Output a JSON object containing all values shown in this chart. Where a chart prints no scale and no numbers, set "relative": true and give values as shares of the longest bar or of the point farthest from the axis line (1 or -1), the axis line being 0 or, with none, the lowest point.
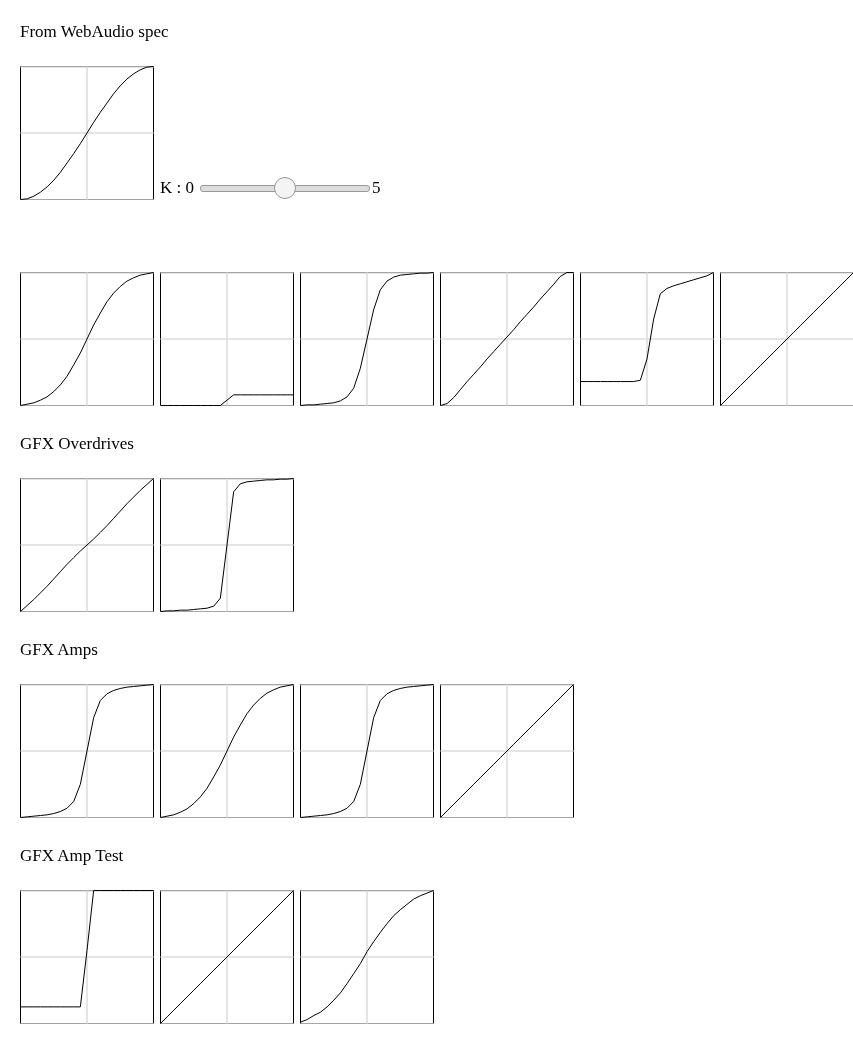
{
  "chart_data": [
    {
      "type": "line",
      "title": "From WebAudio spec",
      "annotations": [
        "K : 0",
        "5"
      ],
      "relative": true,
      "grid": true,
      "categories": [
        null,
        null,
        null,
        null,
        null,
        null,
        null,
        null,
        null,
        null,
        null,
        null,
        null,
        null,
        null,
        null,
        null,
        null,
        null,
        null,
        null
      ],
      "color": "#000000",
      "values": [
        -1,
        -0.99,
        -0.95,
        -0.89,
        -0.81,
        -0.71,
        -0.59,
        -0.45,
        -0.31,
        -0.16,
        0,
        0.16,
        0.31,
        0.45,
        0.59,
        0.71,
        0.81,
        0.89,
        0.95,
        0.99,
        1
      ]
    },
    {
      "type": "line",
      "relative": true,
      "grid": true,
      "categories": [
        null,
        null,
        null,
        null,
        null,
        null,
        null,
        null,
        null,
        null,
        null,
        null,
        null,
        null,
        null,
        null,
        null,
        null,
        null,
        null,
        null
      ],
      "color": "#000000",
      "values": [
        -1,
        -0.98,
        -0.96,
        -0.92,
        -0.87,
        -0.79,
        -0.69,
        -0.56,
        -0.39,
        -0.21,
        0,
        0.21,
        0.39,
        0.56,
        0.69,
        0.79,
        0.87,
        0.92,
        0.96,
        0.98,
        1
      ]
    },
    {
      "type": "line",
      "relative": true,
      "grid": true,
      "categories": [
        null,
        null,
        null,
        null,
        null,
        null,
        null,
        null,
        null,
        null,
        null,
        null,
        null,
        null,
        null,
        null,
        null,
        null,
        null,
        null,
        null
      ],
      "color": "#000000",
      "values": [
        -1,
        -1,
        -1,
        -1,
        -1,
        -1,
        -1,
        -1,
        -1,
        -1,
        -0.92,
        -0.84,
        -0.84,
        -0.84,
        -0.84,
        -0.84,
        -0.84,
        -0.84,
        -0.84,
        -0.84,
        -0.84
      ]
    },
    {
      "type": "line",
      "relative": true,
      "grid": true,
      "categories": [
        null,
        null,
        null,
        null,
        null,
        null,
        null,
        null,
        null,
        null,
        null,
        null,
        null,
        null,
        null,
        null,
        null,
        null,
        null,
        null,
        null
      ],
      "color": "#000000",
      "values": [
        -1,
        -0.99,
        -0.99,
        -0.98,
        -0.97,
        -0.96,
        -0.93,
        -0.87,
        -0.74,
        -0.44,
        0,
        0.44,
        0.74,
        0.87,
        0.93,
        0.96,
        0.97,
        0.98,
        0.99,
        0.99,
        1
      ]
    },
    {
      "type": "line",
      "relative": true,
      "grid": true,
      "categories": [
        null,
        null,
        null,
        null,
        null,
        null,
        null,
        null,
        null,
        null,
        null,
        null,
        null,
        null,
        null,
        null,
        null,
        null,
        null,
        null,
        null
      ],
      "color": "#000000",
      "values": [
        -1,
        -0.97,
        -0.88,
        -0.76,
        -0.64,
        -0.53,
        -0.42,
        -0.3,
        -0.19,
        -0.08,
        0.03,
        0.14,
        0.26,
        0.37,
        0.48,
        0.6,
        0.71,
        0.82,
        0.94,
        1,
        1
      ]
    },
    {
      "type": "line",
      "relative": true,
      "grid": true,
      "categories": [
        null,
        null,
        null,
        null,
        null,
        null,
        null,
        null,
        null,
        null,
        null,
        null,
        null,
        null,
        null,
        null,
        null,
        null,
        null,
        null,
        null
      ],
      "color": "#000000",
      "values": [
        -0.64,
        -0.64,
        -0.64,
        -0.64,
        -0.64,
        -0.64,
        -0.64,
        -0.64,
        -0.64,
        -0.62,
        -0.3,
        0.3,
        0.68,
        0.76,
        0.8,
        0.83,
        0.86,
        0.89,
        0.92,
        0.95,
        1
      ]
    },
    {
      "type": "line",
      "relative": true,
      "grid": true,
      "categories": [
        null,
        null,
        null,
        null,
        null,
        null,
        null,
        null,
        null,
        null,
        null,
        null,
        null,
        null,
        null,
        null,
        null,
        null,
        null,
        null,
        null
      ],
      "color": "#000000",
      "values": [
        -1,
        -0.9,
        -0.8,
        -0.7,
        -0.6,
        -0.5,
        -0.4,
        -0.3,
        -0.2,
        -0.1,
        0,
        0.1,
        0.2,
        0.3,
        0.4,
        0.5,
        0.6,
        0.7,
        0.8,
        0.9,
        1
      ]
    },
    {
      "type": "line",
      "title": "GFX Overdrives",
      "relative": true,
      "grid": true,
      "categories": [
        null,
        null,
        null,
        null,
        null,
        null,
        null,
        null,
        null,
        null,
        null,
        null,
        null,
        null,
        null,
        null,
        null,
        null,
        null,
        null,
        null
      ],
      "color": "#000000",
      "values": [
        -1,
        -0.91,
        -0.82,
        -0.72,
        -0.62,
        -0.51,
        -0.4,
        -0.29,
        -0.19,
        -0.09,
        0,
        0.09,
        0.19,
        0.29,
        0.4,
        0.51,
        0.62,
        0.72,
        0.82,
        0.91,
        1
      ]
    },
    {
      "type": "line",
      "relative": true,
      "grid": true,
      "categories": [
        null,
        null,
        null,
        null,
        null,
        null,
        null,
        null,
        null,
        null,
        null,
        null,
        null,
        null,
        null,
        null,
        null,
        null,
        null,
        null,
        null
      ],
      "color": "#000000",
      "values": [
        -1,
        -0.99,
        -0.99,
        -0.98,
        -0.98,
        -0.97,
        -0.96,
        -0.95,
        -0.92,
        -0.8,
        0,
        0.8,
        0.92,
        0.95,
        0.96,
        0.97,
        0.98,
        0.98,
        0.99,
        0.99,
        1
      ]
    },
    {
      "type": "line",
      "title": "GFX Amps",
      "relative": true,
      "grid": true,
      "categories": [
        null,
        null,
        null,
        null,
        null,
        null,
        null,
        null,
        null,
        null,
        null,
        null,
        null,
        null,
        null,
        null,
        null,
        null,
        null,
        null,
        null
      ],
      "color": "#000000",
      "values": [
        -1,
        -0.99,
        -0.98,
        -0.97,
        -0.96,
        -0.94,
        -0.91,
        -0.86,
        -0.76,
        -0.5,
        0,
        0.5,
        0.76,
        0.86,
        0.91,
        0.94,
        0.96,
        0.97,
        0.98,
        0.99,
        1
      ]
    },
    {
      "type": "line",
      "relative": true,
      "grid": true,
      "categories": [
        null,
        null,
        null,
        null,
        null,
        null,
        null,
        null,
        null,
        null,
        null,
        null,
        null,
        null,
        null,
        null,
        null,
        null,
        null,
        null,
        null
      ],
      "color": "#000000",
      "values": [
        -1,
        -0.98,
        -0.96,
        -0.92,
        -0.87,
        -0.79,
        -0.69,
        -0.56,
        -0.39,
        -0.21,
        0,
        0.21,
        0.39,
        0.56,
        0.69,
        0.79,
        0.87,
        0.92,
        0.96,
        0.98,
        1
      ]
    },
    {
      "type": "line",
      "relative": true,
      "grid": true,
      "categories": [
        null,
        null,
        null,
        null,
        null,
        null,
        null,
        null,
        null,
        null,
        null,
        null,
        null,
        null,
        null,
        null,
        null,
        null,
        null,
        null,
        null
      ],
      "color": "#000000",
      "values": [
        -1,
        -0.99,
        -0.98,
        -0.97,
        -0.96,
        -0.94,
        -0.91,
        -0.86,
        -0.76,
        -0.5,
        0,
        0.5,
        0.76,
        0.86,
        0.91,
        0.94,
        0.96,
        0.97,
        0.98,
        0.99,
        1
      ]
    },
    {
      "type": "line",
      "relative": true,
      "grid": true,
      "categories": [
        null,
        null,
        null,
        null,
        null,
        null,
        null,
        null,
        null,
        null,
        null,
        null,
        null,
        null,
        null,
        null,
        null,
        null,
        null,
        null,
        null
      ],
      "color": "#000000",
      "values": [
        -1,
        -0.9,
        -0.8,
        -0.7,
        -0.6,
        -0.5,
        -0.4,
        -0.3,
        -0.2,
        -0.1,
        0,
        0.1,
        0.2,
        0.3,
        0.4,
        0.5,
        0.6,
        0.7,
        0.8,
        0.9,
        1
      ]
    },
    {
      "type": "line",
      "title": "GFX Amp Test",
      "relative": true,
      "grid": true,
      "categories": [
        null,
        null,
        null,
        null,
        null,
        null,
        null,
        null,
        null,
        null,
        null,
        null,
        null,
        null,
        null,
        null,
        null,
        null,
        null,
        null,
        null
      ],
      "color": "#000000",
      "values": [
        -0.75,
        -0.75,
        -0.75,
        -0.75,
        -0.75,
        -0.75,
        -0.75,
        -0.75,
        -0.75,
        -0.75,
        0.1,
        1,
        1,
        1,
        1,
        1,
        1,
        1,
        1,
        1,
        1
      ]
    },
    {
      "type": "line",
      "relative": true,
      "grid": true,
      "categories": [
        null,
        null,
        null,
        null,
        null,
        null,
        null,
        null,
        null,
        null,
        null,
        null,
        null,
        null,
        null,
        null,
        null,
        null,
        null,
        null,
        null
      ],
      "color": "#000000",
      "values": [
        -1,
        -0.9,
        -0.8,
        -0.7,
        -0.6,
        -0.5,
        -0.4,
        -0.3,
        -0.2,
        -0.1,
        0,
        0.1,
        0.2,
        0.3,
        0.4,
        0.5,
        0.6,
        0.7,
        0.8,
        0.9,
        1
      ]
    },
    {
      "type": "line",
      "relative": true,
      "grid": true,
      "categories": [
        null,
        null,
        null,
        null,
        null,
        null,
        null,
        null,
        null,
        null,
        null,
        null,
        null,
        null,
        null,
        null,
        null,
        null,
        null,
        null,
        null
      ],
      "color": "#000000",
      "values": [
        -0.98,
        -0.94,
        -0.88,
        -0.83,
        -0.75,
        -0.65,
        -0.54,
        -0.4,
        -0.25,
        -0.1,
        0.08,
        0.23,
        0.37,
        0.5,
        0.62,
        0.71,
        0.79,
        0.87,
        0.92,
        0.96,
        1
      ]
    }
  ]
}
